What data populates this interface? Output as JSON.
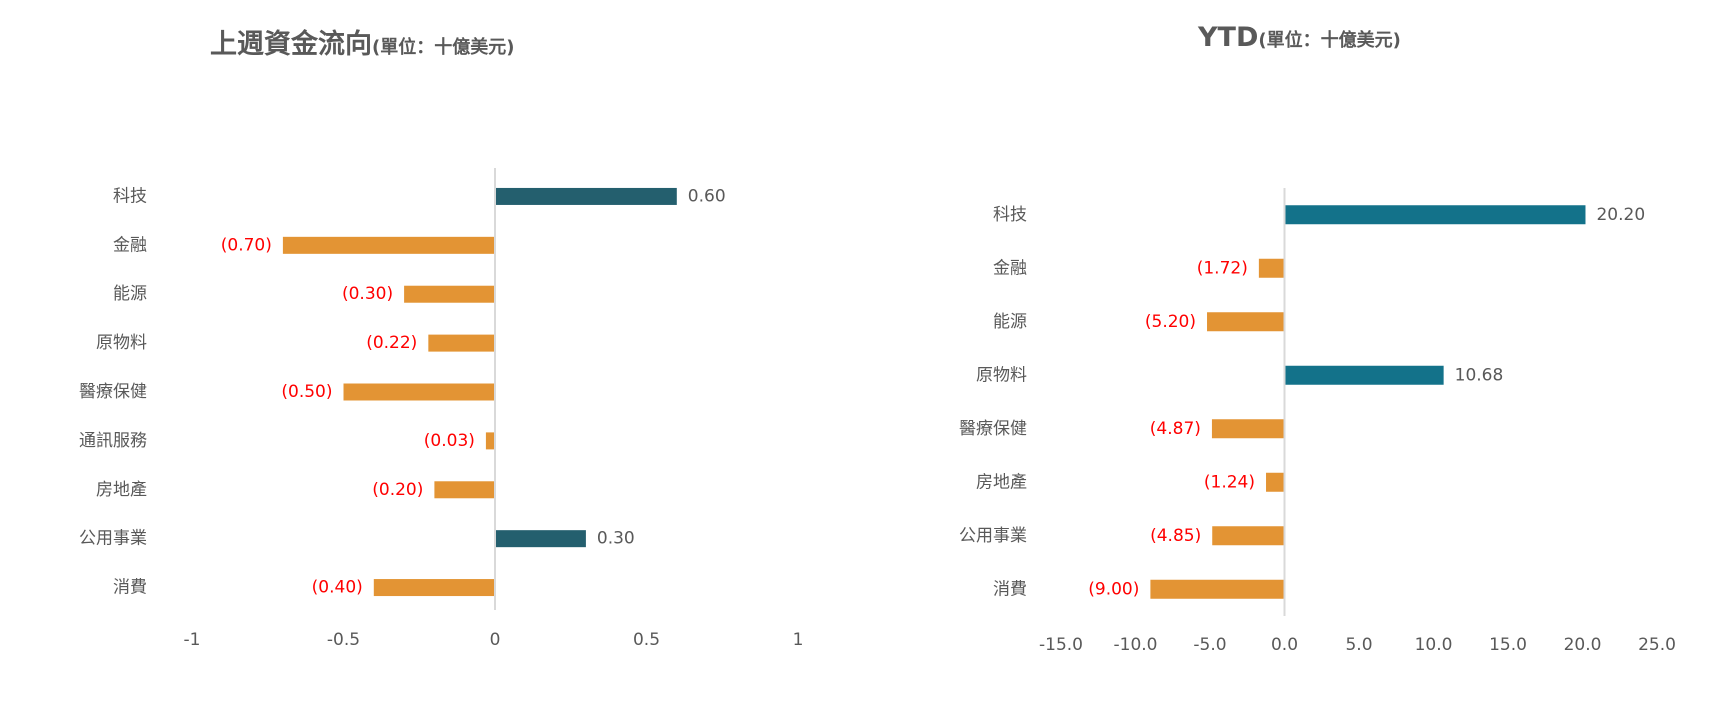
{
  "colors": {
    "positive_left": "#245f6e",
    "positive_right": "#13728a",
    "negative": "#e39434",
    "negative_label": "#ff0000",
    "axis": "#d9d9d9",
    "text": "#595959"
  },
  "chart_data": [
    {
      "type": "bar",
      "orientation": "horizontal",
      "title": "上週資金流向",
      "subtitle": "(單位：十億美元)",
      "categories": [
        "科技",
        "金融",
        "能源",
        "原物料",
        "醫療保健",
        "通訊服務",
        "房地產",
        "公用事業",
        "消費"
      ],
      "values": [
        0.6,
        -0.7,
        -0.3,
        -0.22,
        -0.5,
        -0.03,
        -0.2,
        0.3,
        -0.4
      ],
      "value_labels": [
        "0.60",
        "(0.70)",
        "(0.30)",
        "(0.22)",
        "(0.50)",
        "(0.03)",
        "(0.20)",
        "0.30",
        "(0.40)"
      ],
      "xlim": [
        -1,
        1
      ],
      "x_ticks": [
        -1,
        -0.5,
        0,
        0.5,
        1
      ],
      "x_tick_labels": [
        "-1",
        "-0.5",
        "0",
        "0.5",
        "1"
      ],
      "grid": false,
      "legend": false
    },
    {
      "type": "bar",
      "orientation": "horizontal",
      "title": "YTD",
      "subtitle": "(單位：十億美元)",
      "categories": [
        "科技",
        "金融",
        "能源",
        "原物料",
        "醫療保健",
        "房地產",
        "公用事業",
        "消費"
      ],
      "values": [
        20.2,
        -1.72,
        -5.2,
        10.68,
        -4.87,
        -1.24,
        -4.85,
        -9.0
      ],
      "value_labels": [
        "20.20",
        "(1.72)",
        "(5.20)",
        "10.68",
        "(4.87)",
        "(1.24)",
        "(4.85)",
        "(9.00)"
      ],
      "xlim": [
        -15,
        25
      ],
      "x_ticks": [
        -15,
        -10,
        -5,
        0,
        5,
        10,
        15,
        20,
        25
      ],
      "x_tick_labels": [
        "-15.0",
        "-10.0",
        "-5.0",
        "0.0",
        "5.0",
        "10.0",
        "15.0",
        "20.0",
        "25.0"
      ],
      "grid": false,
      "legend": false
    }
  ]
}
